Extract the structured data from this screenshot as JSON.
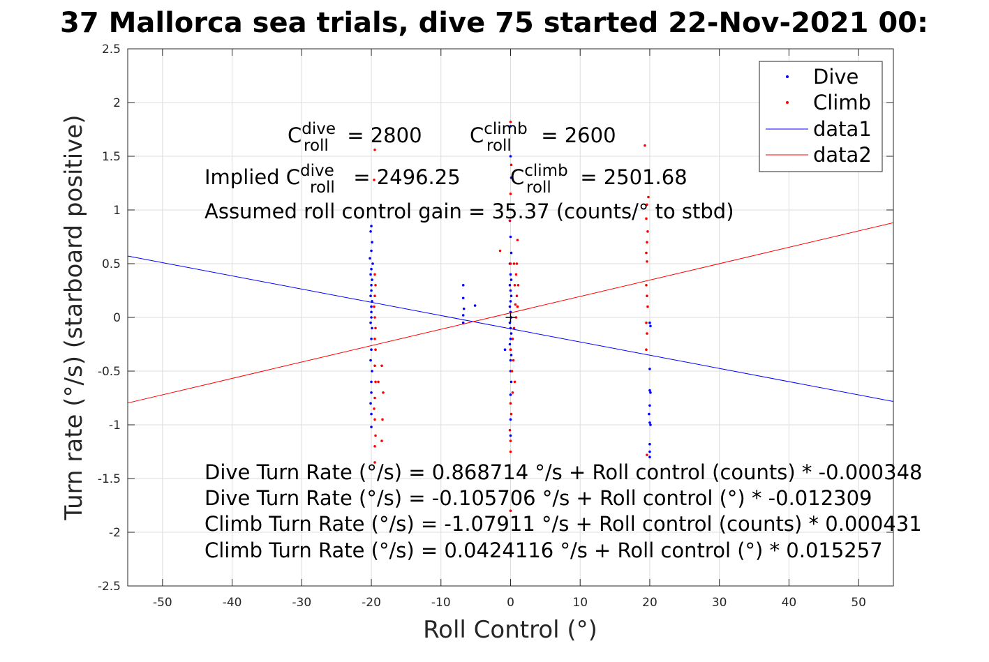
{
  "chart_data": {
    "type": "scatter",
    "title": "37 Mallorca sea trials, dive 75 started 22-Nov-2021 00:",
    "xlabel": "Roll Control (°)",
    "ylabel": "Turn rate (°/s) (starboard positive)",
    "xlim": [
      -55,
      55
    ],
    "ylim": [
      -2.5,
      2.5
    ],
    "xticks": [
      -50,
      -40,
      -30,
      -20,
      -10,
      0,
      10,
      20,
      30,
      40,
      50
    ],
    "xtick_labels": [
      "-50",
      "-40",
      "-30",
      "-20",
      "-10",
      "0",
      "10",
      "20",
      "30",
      "40",
      "50"
    ],
    "yticks": [
      -2.5,
      -2,
      -1.5,
      -1,
      -0.5,
      0,
      0.5,
      1,
      1.5,
      2,
      2.5
    ],
    "ytick_labels": [
      "-2.5",
      "-2",
      "-1.5",
      "-1",
      "-0.5",
      "0",
      "0.5",
      "1",
      "1.5",
      "2",
      "2.5"
    ],
    "grid": true,
    "legend_position": "top-right",
    "series": [
      {
        "name": "Dive",
        "type": "scatter",
        "color": "#0000ff",
        "points": [
          [
            -20,
            0.85
          ],
          [
            -20.1,
            0.8
          ],
          [
            -19.9,
            0.7
          ],
          [
            -20,
            0.62
          ],
          [
            -20.2,
            0.55
          ],
          [
            -19.8,
            0.5
          ],
          [
            -20,
            0.45
          ],
          [
            -20.1,
            0.4
          ],
          [
            -19.9,
            0.35
          ],
          [
            -20,
            0.3
          ],
          [
            -20,
            0.25
          ],
          [
            -20.1,
            0.2
          ],
          [
            -19.9,
            0.15
          ],
          [
            -20,
            0.1
          ],
          [
            -20,
            0.05
          ],
          [
            -20,
            0.0
          ],
          [
            -20.1,
            -0.05
          ],
          [
            -19.9,
            -0.1
          ],
          [
            -20,
            -0.2
          ],
          [
            -20,
            -0.3
          ],
          [
            -20.1,
            -0.4
          ],
          [
            -19.9,
            -0.5
          ],
          [
            -20,
            -0.6
          ],
          [
            -20,
            -0.7
          ],
          [
            -20.1,
            -0.8
          ],
          [
            -20,
            -0.9
          ],
          [
            -20,
            -1.02
          ],
          [
            -6.8,
            0.3
          ],
          [
            -6.8,
            0.18
          ],
          [
            -6.7,
            0.08
          ],
          [
            -6.8,
            0.02
          ],
          [
            -6.8,
            -0.05
          ],
          [
            -5.1,
            0.11
          ],
          [
            0,
            1.78
          ],
          [
            0,
            1.5
          ],
          [
            0.1,
            1.3
          ],
          [
            -0.1,
            0.9
          ],
          [
            0,
            0.75
          ],
          [
            0.1,
            0.6
          ],
          [
            -0.1,
            0.5
          ],
          [
            0,
            0.4
          ],
          [
            0.1,
            0.35
          ],
          [
            -0.1,
            0.3
          ],
          [
            0,
            0.25
          ],
          [
            0.1,
            0.2
          ],
          [
            0,
            0.15
          ],
          [
            -0.1,
            0.1
          ],
          [
            0,
            0.05
          ],
          [
            0.1,
            0.0
          ],
          [
            -0.1,
            -0.05
          ],
          [
            0,
            -0.1
          ],
          [
            0.1,
            -0.15
          ],
          [
            0,
            -0.2
          ],
          [
            -0.1,
            -0.25
          ],
          [
            0,
            -0.3
          ],
          [
            0.1,
            -0.35
          ],
          [
            0,
            -0.4
          ],
          [
            -0.8,
            -0.3
          ],
          [
            0,
            -0.5
          ],
          [
            0.1,
            -0.6
          ],
          [
            0,
            -0.72
          ],
          [
            0,
            -0.95
          ],
          [
            0,
            -1.1
          ],
          [
            20,
            -0.05
          ],
          [
            20.1,
            -0.08
          ],
          [
            20,
            -0.48
          ],
          [
            20,
            -0.68
          ],
          [
            20.1,
            -0.7
          ],
          [
            20,
            -0.82
          ],
          [
            19.9,
            -0.9
          ],
          [
            20,
            -0.98
          ],
          [
            20.1,
            -1.0
          ],
          [
            20,
            -1.18
          ],
          [
            20,
            -1.25
          ],
          [
            20,
            -1.3
          ]
        ]
      },
      {
        "name": "Climb",
        "type": "scatter",
        "color": "#ff0000",
        "points": [
          [
            -19.5,
            1.56
          ],
          [
            -19.6,
            1.28
          ],
          [
            -19.5,
            0.4
          ],
          [
            -19.4,
            0.3
          ],
          [
            -19.5,
            0.2
          ],
          [
            -19.6,
            0.1
          ],
          [
            -19.5,
            0.0
          ],
          [
            -19.4,
            -0.1
          ],
          [
            -19.5,
            -0.2
          ],
          [
            -19.4,
            -0.3
          ],
          [
            -19.5,
            -0.45
          ],
          [
            -19.4,
            -0.6
          ],
          [
            -19.5,
            -0.75
          ],
          [
            -19.6,
            -0.85
          ],
          [
            -19.5,
            -0.95
          ],
          [
            -19.4,
            -1.1
          ],
          [
            -19.5,
            -1.2
          ],
          [
            -19.5,
            -1.35
          ],
          [
            -18.5,
            -0.45
          ],
          [
            -18.3,
            -0.7
          ],
          [
            -18.4,
            -0.95
          ],
          [
            -18.5,
            -1.15
          ],
          [
            -19,
            -0.6
          ],
          [
            0,
            1.82
          ],
          [
            0.1,
            1.42
          ],
          [
            0,
            1.15
          ],
          [
            -0.1,
            0.9
          ],
          [
            0,
            0.5
          ],
          [
            -1.5,
            0.62
          ],
          [
            0.5,
            0.5
          ],
          [
            0.8,
            0.4
          ],
          [
            0.6,
            0.3
          ],
          [
            0.9,
            0.2
          ],
          [
            0.7,
            0.12
          ],
          [
            1,
            0.1
          ],
          [
            0.8,
            0.0
          ],
          [
            0.5,
            -0.1
          ],
          [
            0.3,
            -0.2
          ],
          [
            0,
            -0.3
          ],
          [
            0.4,
            -0.4
          ],
          [
            0.2,
            -0.5
          ],
          [
            0.6,
            -0.6
          ],
          [
            0.3,
            -0.7
          ],
          [
            0,
            -0.8
          ],
          [
            0.1,
            -0.9
          ],
          [
            -0.1,
            -1.05
          ],
          [
            0,
            -1.15
          ],
          [
            0,
            -1.25
          ],
          [
            0,
            -1.8
          ],
          [
            1,
            0.72
          ],
          [
            0.9,
            0.5
          ],
          [
            1.1,
            0.3
          ],
          [
            19.3,
            1.6
          ],
          [
            19.8,
            1.12
          ],
          [
            19.6,
            1.05
          ],
          [
            19.5,
            0.92
          ],
          [
            19.7,
            0.8
          ],
          [
            19.6,
            0.7
          ],
          [
            19.5,
            0.6
          ],
          [
            19.6,
            0.52
          ],
          [
            19.5,
            0.3
          ],
          [
            19.6,
            0.2
          ],
          [
            19.7,
            0.1
          ],
          [
            19.5,
            -0.05
          ],
          [
            19.6,
            -0.15
          ],
          [
            19.5,
            -0.3
          ],
          [
            19.6,
            -1.28
          ]
        ]
      },
      {
        "name": "data1",
        "type": "line",
        "color": "#0000ff",
        "points": [
          [
            -55,
            0.5713
          ],
          [
            55,
            -0.7827
          ]
        ]
      },
      {
        "name": "data2",
        "type": "line",
        "color": "#ff0000",
        "points": [
          [
            -55,
            -0.7967
          ],
          [
            55,
            0.8815
          ]
        ]
      }
    ],
    "marker": {
      "x": 0,
      "y": 0,
      "symbol": "+",
      "color": "#000000"
    },
    "annotations": {
      "c_dive": {
        "base": "C",
        "sup": "dive",
        "sub": "roll",
        "rest": " = 2800"
      },
      "c_climb": {
        "base": "C",
        "sup": "climb",
        "sub": "roll",
        "rest": " = 2600"
      },
      "implied_dive": {
        "prefix": "Implied C",
        "sup": "dive",
        "sub": "roll",
        "rest": " = 2496.25"
      },
      "implied_climb": {
        "base": "C",
        "sup": "climb",
        "sub": "roll",
        "rest": " = 2501.68"
      },
      "gain": "Assumed roll control gain = 35.37 (counts/° to stbd)",
      "eq1": "Dive Turn Rate (°/s) = 0.868714 °/s + Roll control (counts) * -0.000348",
      "eq2": "Dive Turn Rate (°/s) = -0.105706 °/s + Roll control (°) * -0.012309",
      "eq3": "Climb Turn Rate (°/s) = -1.07911 °/s + Roll control (counts) * 0.000431",
      "eq4": "Climb Turn Rate (°/s) = 0.0424116 °/s + Roll control (°) * 0.015257"
    }
  }
}
